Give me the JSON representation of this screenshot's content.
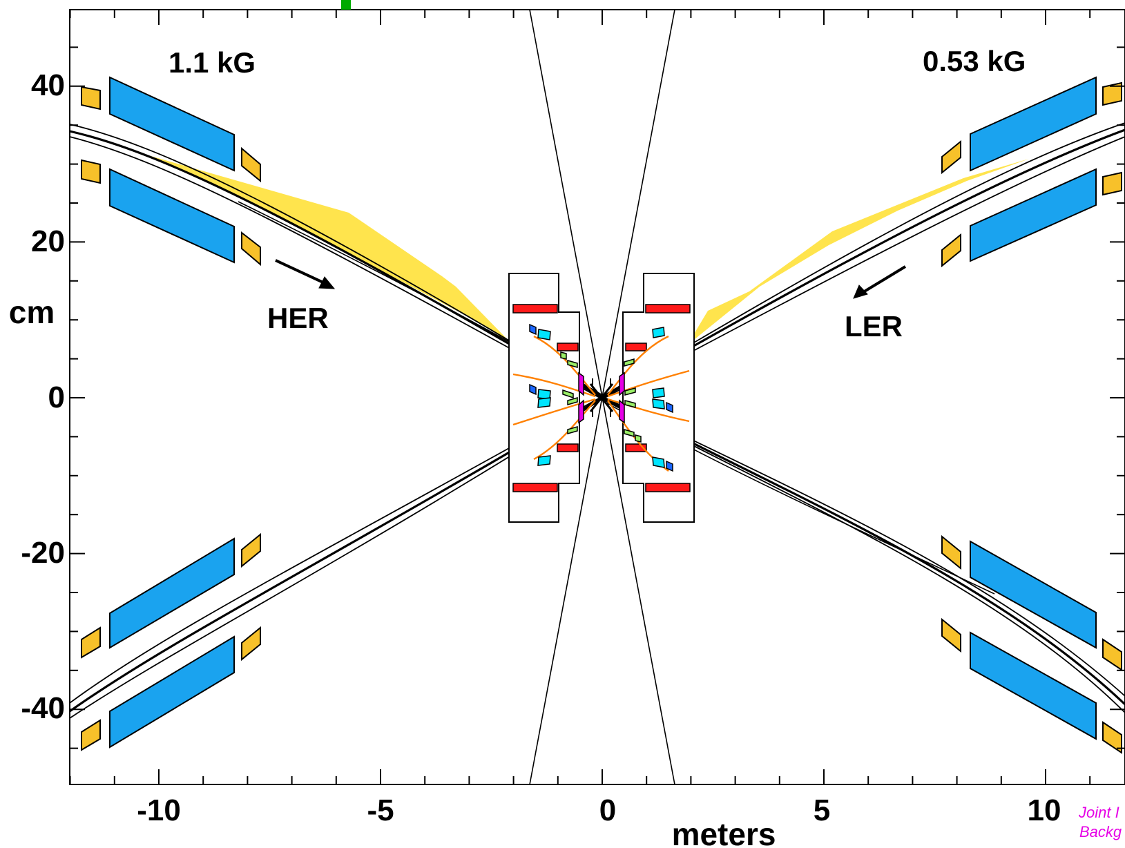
{
  "axes": {
    "x_title": "meters",
    "y_title": "cm",
    "x_ticks": [
      "-10",
      "-5",
      "0",
      "5",
      "10"
    ],
    "y_ticks": [
      "40",
      "20",
      "0",
      "-20",
      "-40"
    ]
  },
  "annotations": {
    "field_left": "1.1 kG",
    "field_right": "0.53 kG",
    "her": "HER",
    "ler": "LER"
  },
  "credit": {
    "line1": "Joint I",
    "line2": "Backg"
  },
  "colors": {
    "quad_blue": "#1aa3ef",
    "bend_orange": "#f7c12a",
    "fan_yellow": "#ffe44d",
    "magnet_red": "#ff1a1a",
    "beamline": "#000000",
    "orange_line": "#ff8000",
    "magenta": "#e600e6",
    "cyan": "#00e5ff",
    "green": "#99ee66",
    "marker_green": "#00aa00"
  }
}
